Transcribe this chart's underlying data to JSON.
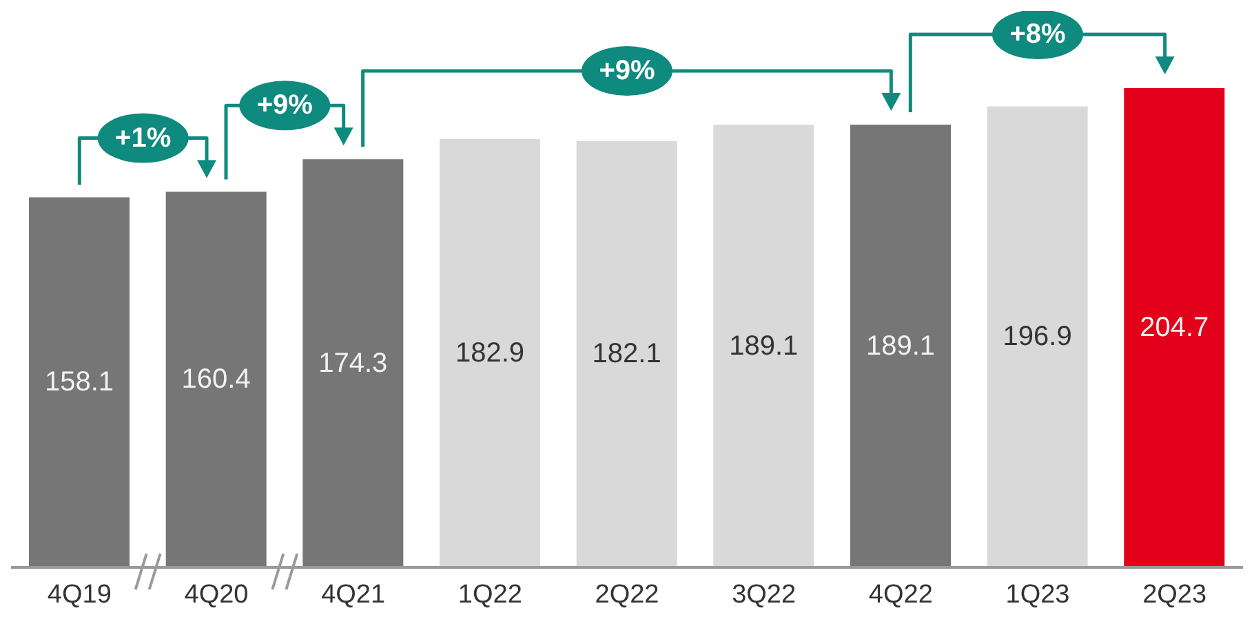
{
  "chart_data": {
    "type": "bar",
    "categories": [
      "4Q19",
      "4Q20",
      "4Q21",
      "1Q22",
      "2Q22",
      "3Q22",
      "4Q22",
      "1Q23",
      "2Q23"
    ],
    "values": [
      158.1,
      160.4,
      174.3,
      182.9,
      182.1,
      189.1,
      189.1,
      196.9,
      204.7
    ],
    "colors": [
      "#767676",
      "#767676",
      "#767676",
      "#d9d9d9",
      "#d9d9d9",
      "#d9d9d9",
      "#767676",
      "#d9d9d9",
      "#e2001a"
    ],
    "data_labels": true,
    "annotations": [
      "+1%",
      "+9%",
      "+9%",
      "+8%"
    ],
    "grid": false,
    "legend": false
  }
}
